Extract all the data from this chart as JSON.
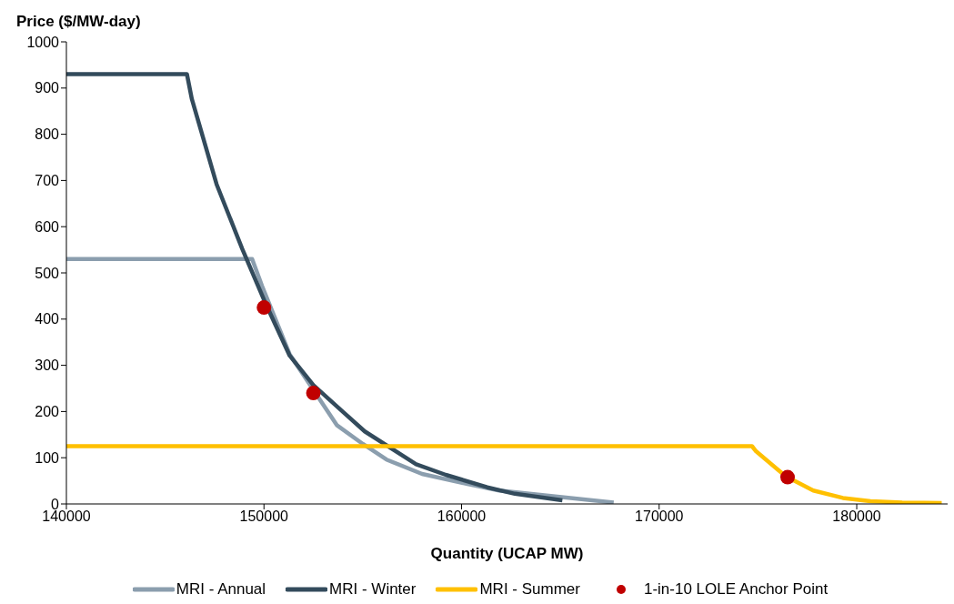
{
  "chart_data": {
    "type": "line",
    "xlabel": "Quantity (UCAP MW)",
    "ylabel": "Price ($/MW-day)",
    "xlim": [
      140000,
      184600
    ],
    "xticks": [
      140000,
      150000,
      160000,
      170000,
      180000
    ],
    "ylim": [
      0,
      1000
    ],
    "yticks": [
      0,
      100,
      200,
      300,
      400,
      500,
      600,
      700,
      800,
      900,
      1000
    ],
    "grid": false,
    "legend": "bottom",
    "marker": "none",
    "line_style": "solid",
    "series": [
      {
        "name": "MRI - Annual",
        "color": "#8b9eae",
        "x": [
          140000,
          149400,
          149900,
          151300,
          153700,
          155000,
          156200,
          158000,
          160300,
          161900,
          167700
        ],
        "values": [
          530,
          530,
          472,
          324,
          170,
          130,
          96,
          65,
          43,
          29,
          3
        ]
      },
      {
        "name": "MRI - Winter",
        "color": "#334b5c",
        "x": [
          140000,
          146100,
          146350,
          147600,
          148900,
          150100,
          151300,
          152500,
          153900,
          155100,
          157700,
          159200,
          161300,
          162700,
          165100
        ],
        "values": [
          930,
          930,
          876,
          692,
          552,
          432,
          321,
          257,
          203,
          157,
          86,
          63,
          36,
          22,
          8
        ]
      },
      {
        "name": "MRI - Summer",
        "color": "#ffc000",
        "x": [
          140000,
          174700,
          174900,
          176400,
          177800,
          179300,
          180700,
          182300,
          184300
        ],
        "values": [
          125,
          125,
          114,
          60,
          29,
          13,
          6,
          3,
          2
        ]
      },
      {
        "name": "1-in-10 LOLE Anchor Point",
        "type": "scatter",
        "marker": "circle",
        "color": "#c00000",
        "x": [
          150000,
          152500,
          176500
        ],
        "values": [
          425,
          240,
          58
        ]
      }
    ]
  }
}
